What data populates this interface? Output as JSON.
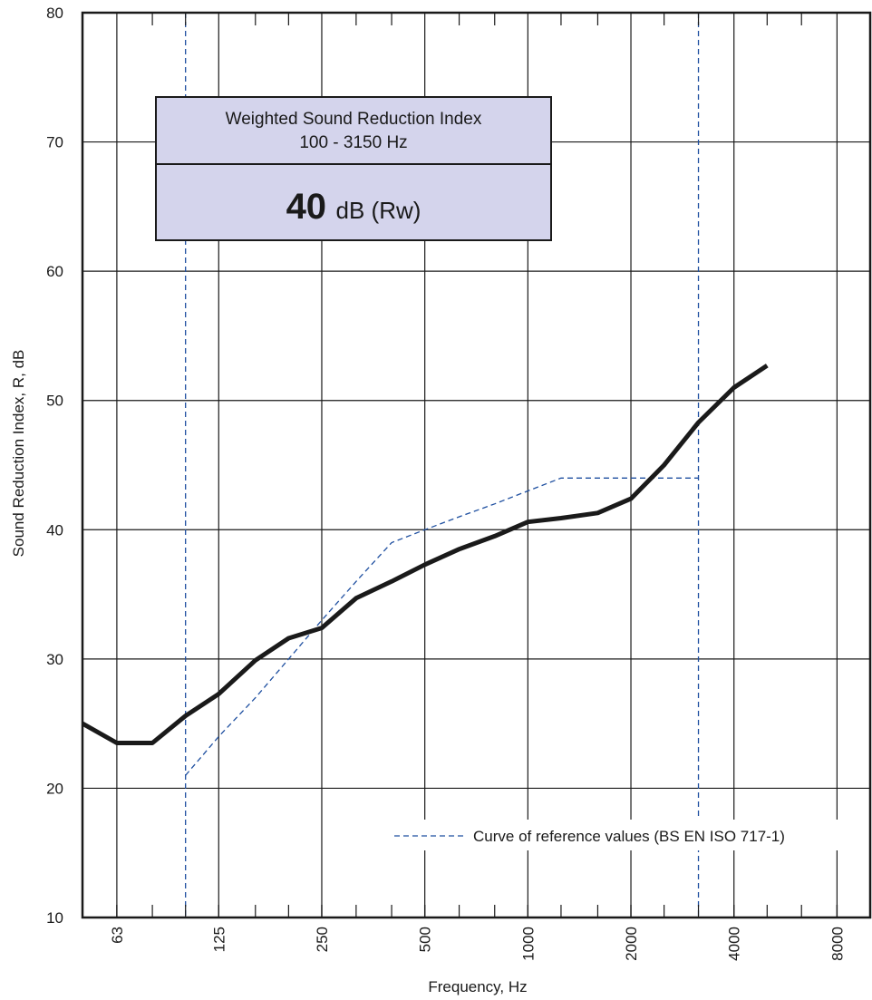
{
  "chart_data": {
    "type": "line",
    "xlabel": "Frequency, Hz",
    "ylabel": "Sound Reduction Index, R, dB",
    "x_scale": "log",
    "xlim": [
      50,
      10000
    ],
    "ylim": [
      10,
      80
    ],
    "y_ticks": [
      10,
      20,
      30,
      40,
      50,
      60,
      70,
      80
    ],
    "x_ticks": [
      63,
      125,
      250,
      500,
      1000,
      2000,
      4000,
      8000
    ],
    "x_tick_labels": [
      "63",
      "125",
      "250",
      "500",
      "1000",
      "2000",
      "4000",
      "8000"
    ],
    "x_minor_ticks": [
      80,
      100,
      160,
      200,
      315,
      400,
      630,
      800,
      1250,
      1600,
      2500,
      3150,
      5000,
      6300
    ],
    "grid": true,
    "rating_range_hz": [
      100,
      3150
    ],
    "series": [
      {
        "name": "",
        "style": "solid",
        "color": "#1a1a1a",
        "x": [
          50,
          63,
          80,
          100,
          125,
          160,
          200,
          250,
          315,
          400,
          500,
          630,
          800,
          1000,
          1250,
          1600,
          2000,
          2500,
          3150,
          4000,
          5000
        ],
        "y": [
          25.0,
          23.5,
          23.5,
          25.6,
          27.3,
          29.9,
          31.6,
          32.4,
          34.7,
          36.0,
          37.3,
          38.5,
          39.5,
          40.6,
          40.9,
          41.3,
          42.4,
          45.0,
          48.3,
          51.0,
          52.7
        ]
      },
      {
        "name": "Curve of reference values (BS EN ISO 717-1)",
        "style": "dashed",
        "color": "#1e4fa0",
        "x": [
          100,
          125,
          160,
          200,
          250,
          315,
          400,
          500,
          630,
          800,
          1000,
          1250,
          1600,
          2000,
          2500,
          3150
        ],
        "y": [
          21,
          24,
          27,
          30,
          33,
          36,
          39,
          40,
          41,
          42,
          43,
          44,
          44,
          44,
          44,
          44
        ]
      }
    ],
    "legend": {
      "position": "bottom-right",
      "entries": [
        "Curve of reference values (BS EN ISO 717-1)"
      ]
    },
    "annotation": {
      "title_line1": "Weighted Sound Reduction Index",
      "title_line2": "100 - 3150 Hz",
      "value": "40",
      "unit": "dB (Rw)",
      "fill_color": "#d4d4ec"
    }
  }
}
